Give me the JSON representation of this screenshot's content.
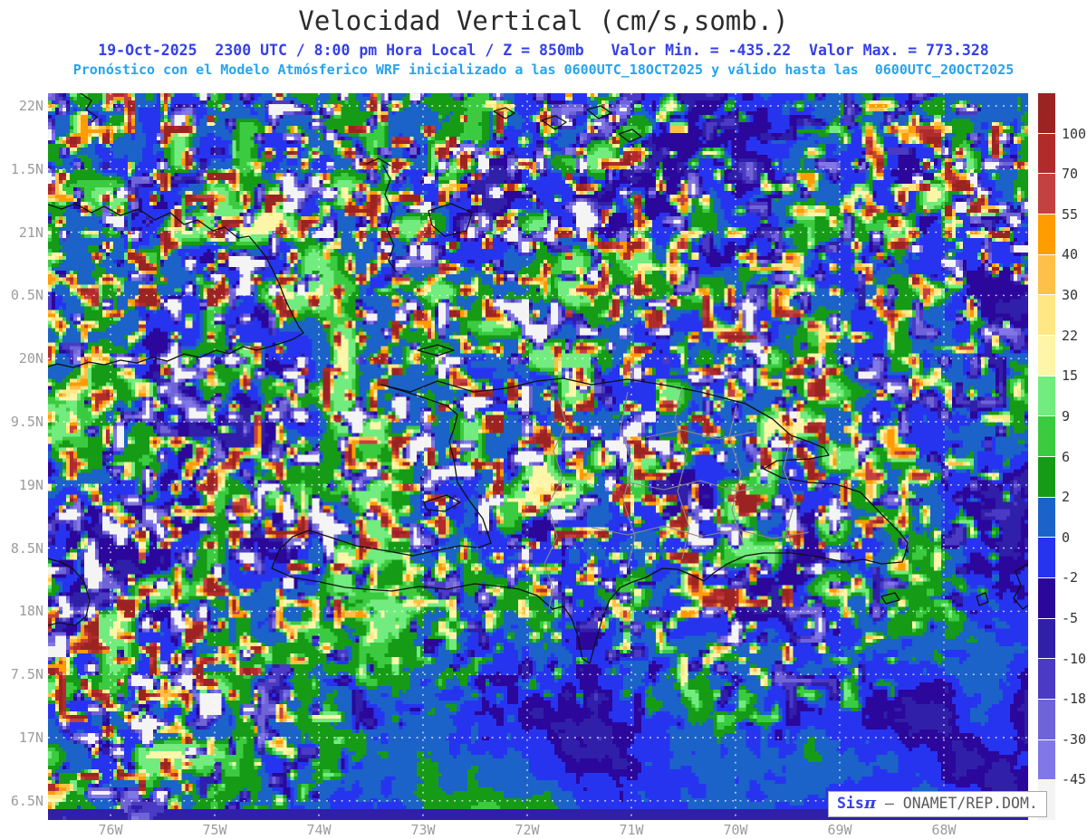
{
  "header": {
    "title": "Velocidad Vertical (cm/s,somb.)",
    "title_color": "#2b2b2b",
    "line1": "19-Oct-2025  2300 UTC / 8:00 pm Hora Local / Z = 850mb   Valor Min. = -435.22  Valor Max. = 773.328",
    "line1_color": "#3540e8",
    "line2": "Pronóstico con el Modelo Atmósferico WRF inicializado a las 0600UTC_18OCT2025 y válido hasta las  0600UTC_20OCT2025",
    "line2_color": "#28a3ec"
  },
  "axes": {
    "lat_labels": [
      "22N",
      "1.5N",
      "21N",
      "0.5N",
      "20N",
      "9.5N",
      "19N",
      "8.5N",
      "18N",
      "7.5N",
      "17N",
      "6.5N"
    ],
    "lon_labels": [
      "76W",
      "75W",
      "74W",
      "73W",
      "72W",
      "71W",
      "70W",
      "69W",
      "68W"
    ]
  },
  "chart_data": {
    "type": "heatmap",
    "title": "Velocidad Vertical (cm/s,somb.)",
    "level": "Z = 850mb",
    "valid": "19-Oct-2025 2300 UTC / 8:00 pm Hora Local",
    "model": "WRF inicializado 0600UTC_18OCT2025, válido hasta 0600UTC_20OCT2025",
    "value_min": -435.22,
    "value_max": 773.328,
    "units": "cm/s",
    "colorbar": {
      "boundary_labels": [
        "100",
        "70",
        "55",
        "40",
        "30",
        "22",
        "15",
        "9",
        "6",
        "2",
        "0",
        "-2",
        "-5",
        "-10",
        "-18",
        "-30",
        "-45"
      ],
      "thresholds": [
        100,
        70,
        55,
        40,
        30,
        22,
        15,
        9,
        6,
        2,
        0,
        -2,
        -5,
        -10,
        -18,
        -30,
        -45
      ],
      "colors_top_to_bottom": [
        "#9b2423",
        "#b22b2b",
        "#c44141",
        "#ff9c00",
        "#ffc04a",
        "#ffe884",
        "#fdf6a8",
        "#72ec7e",
        "#3bcb40",
        "#169b16",
        "#1b63c8",
        "#2634f0",
        "#2b079c",
        "#301fa9",
        "#4a3ac4",
        "#6f63d8",
        "#8277e8",
        "#f4f4f4"
      ]
    },
    "lat_range_displayed": [
      "22N",
      "16.5N"
    ],
    "lon_range_displayed": [
      "76W",
      "68W"
    ]
  },
  "watermark": {
    "brand": "Sis",
    "pi": "π",
    "rest": " – ONAMET/REP.DOM."
  }
}
